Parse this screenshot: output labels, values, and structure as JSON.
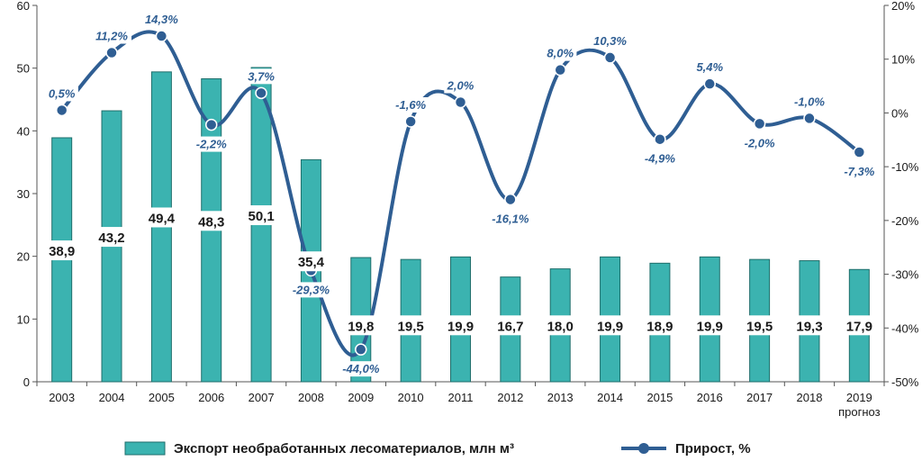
{
  "chart_data": {
    "type": "bar",
    "categories": [
      "2003",
      "2004",
      "2005",
      "2006",
      "2007",
      "2008",
      "2009",
      "2010",
      "2011",
      "2012",
      "2013",
      "2014",
      "2015",
      "2016",
      "2017",
      "2018",
      "2019"
    ],
    "category_sublabels": {
      "2019": "прогноз"
    },
    "series": [
      {
        "name": "Экспорт необработанных лесоматериалов, млн м³",
        "type": "bar",
        "axis": "left",
        "color": "#3bb3b0",
        "values": [
          38.9,
          43.2,
          49.4,
          48.3,
          50.1,
          35.4,
          19.8,
          19.5,
          19.9,
          16.7,
          18.0,
          19.9,
          18.9,
          19.9,
          19.5,
          19.3,
          17.9
        ],
        "labels": [
          "38,9",
          "43,2",
          "49,4",
          "48,3",
          "50,1",
          "35,4",
          "19,8",
          "19,5",
          "19,9",
          "16,7",
          "18,0",
          "19,9",
          "18,9",
          "19,9",
          "19,5",
          "19,3",
          "17,9"
        ]
      },
      {
        "name": "Прирост, %",
        "type": "line",
        "axis": "right",
        "color": "#2f5e93",
        "values": [
          0.5,
          11.2,
          14.3,
          -2.2,
          3.7,
          -29.3,
          -44.0,
          -1.6,
          2.0,
          -16.1,
          8.0,
          10.3,
          -4.9,
          5.4,
          -2.0,
          -1.0,
          -7.3
        ],
        "labels": [
          "0,5%",
          "11,2%",
          "14,3%",
          "-2,2%",
          "3,7%",
          "-29,3%",
          "-44,0%",
          "-1,6%",
          "2,0%",
          "-16,1%",
          "8,0%",
          "10,3%",
          "-4,9%",
          "5,4%",
          "-2,0%",
          "-1,0%",
          "-7,3%"
        ]
      }
    ],
    "y_left": {
      "ylim": [
        0,
        60
      ],
      "ticks": [
        "0",
        "10",
        "20",
        "30",
        "40",
        "50",
        "60"
      ]
    },
    "y_right": {
      "ylim": [
        -50,
        20
      ],
      "ticks": [
        "-50%",
        "-40%",
        "-30%",
        "-20%",
        "-10%",
        "0%",
        "10%",
        "20%"
      ]
    },
    "grid": false,
    "legend_position": "bottom"
  }
}
